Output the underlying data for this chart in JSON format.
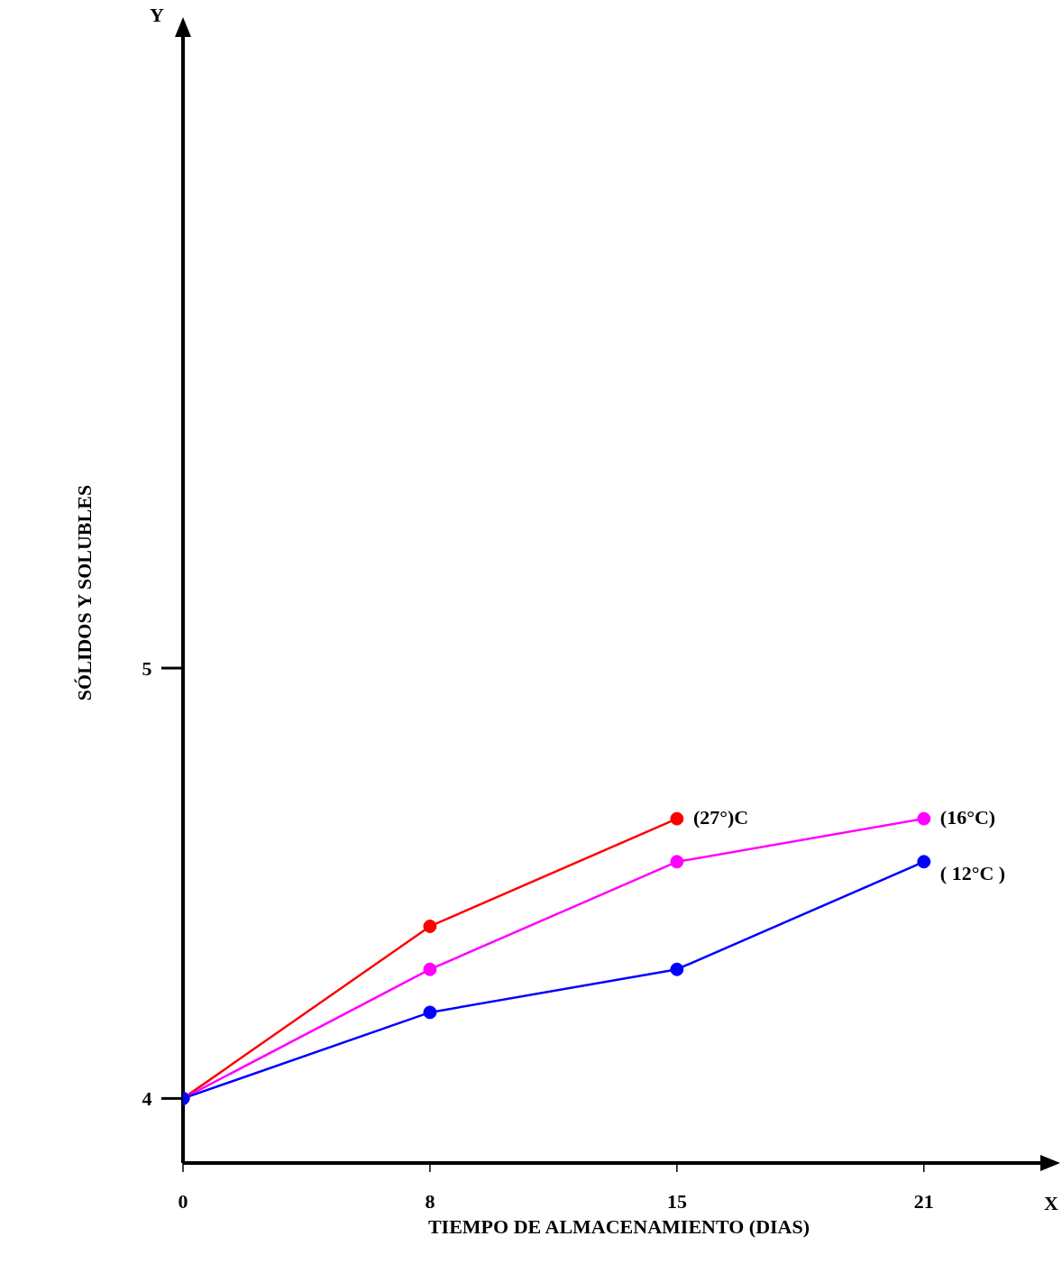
{
  "chart_data": {
    "type": "line",
    "xlabel": "TIEMPO DE ALMACENAMIENTO (DIAS)",
    "ylabel": "SÓLIDOS Y SOLUBLES",
    "annotations": [
      "Y",
      "X"
    ],
    "categories": [
      "0",
      "8",
      "15",
      "21"
    ],
    "series": [
      {
        "name": "(27°)C",
        "color": "#ff0000",
        "values": [
          4,
          4.4,
          4.65,
          null
        ]
      },
      {
        "name": "(16°C)",
        "color": "#ff00ff",
        "values": [
          4,
          4.3,
          4.55,
          4.65
        ]
      },
      {
        "name": "( 12°C )",
        "color": "#0000ff",
        "values": [
          4,
          4.2,
          4.3,
          4.55
        ]
      }
    ],
    "ylim": [
      3.85,
      6.5
    ],
    "yticks": [
      4,
      5
    ],
    "grid": false,
    "legend": false,
    "marker": "circle",
    "line_style": "solid"
  }
}
